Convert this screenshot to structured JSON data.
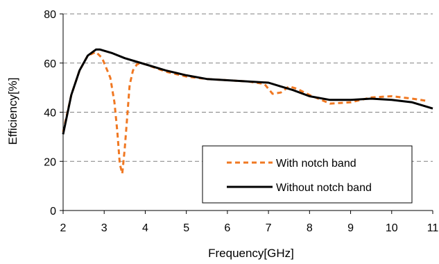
{
  "chart_data": {
    "type": "line",
    "title": "",
    "xlabel": "Frequency[GHz]",
    "ylabel": "Efficiency[%]",
    "xlim": [
      2,
      11
    ],
    "ylim": [
      0,
      80
    ],
    "x_ticks": [
      2,
      3,
      4,
      5,
      6,
      7,
      8,
      9,
      10,
      11
    ],
    "y_ticks": [
      0,
      20,
      40,
      60,
      80
    ],
    "grid": "horizontal dashed",
    "legend_position": "bottom-right",
    "series": [
      {
        "name": "With notch band",
        "color": "#f07822",
        "line_style": "dashed",
        "x": [
          2.0,
          2.2,
          2.4,
          2.6,
          2.8,
          2.95,
          3.05,
          3.15,
          3.25,
          3.32,
          3.38,
          3.44,
          3.5,
          3.56,
          3.62,
          3.7,
          3.8,
          3.9,
          4.0,
          4.5,
          5.0,
          5.5,
          6.0,
          6.5,
          6.9,
          7.1,
          7.3,
          7.5,
          7.7,
          8.0,
          8.5,
          9.0,
          9.5,
          10.0,
          10.5,
          10.9
        ],
        "y": [
          32,
          47,
          57,
          63,
          64.5,
          62,
          58,
          54,
          44,
          32,
          19,
          15,
          25,
          38,
          51,
          57,
          59.5,
          60,
          59.5,
          56.5,
          54.5,
          53.5,
          53,
          52.5,
          51.5,
          47.5,
          48,
          50.5,
          49.5,
          47,
          43.5,
          44,
          46,
          46.5,
          45.5,
          44.5
        ]
      },
      {
        "name": "Without notch band",
        "color": "#000000",
        "line_style": "solid",
        "x": [
          2.0,
          2.2,
          2.4,
          2.6,
          2.8,
          2.9,
          3.0,
          3.2,
          3.5,
          3.8,
          4.0,
          4.5,
          5.0,
          5.5,
          6.0,
          6.5,
          7.0,
          7.3,
          7.6,
          8.0,
          8.5,
          9.0,
          9.5,
          10.0,
          10.5,
          11.0
        ],
        "y": [
          31,
          47,
          57,
          63,
          65.5,
          65.5,
          65,
          64,
          62,
          60.5,
          59.5,
          57,
          55,
          53.5,
          53,
          52.5,
          52,
          50.5,
          49,
          46.5,
          45,
          45,
          45.5,
          45,
          44,
          41.5
        ]
      }
    ]
  }
}
